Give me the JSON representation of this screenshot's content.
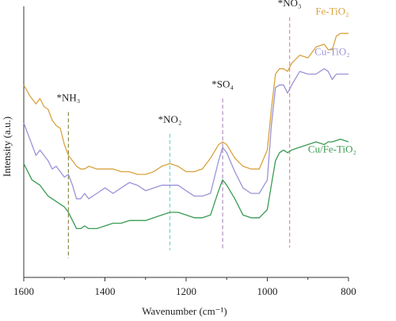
{
  "chart_data": {
    "type": "line",
    "xlabel": "Wavenumber (cm⁻¹)",
    "ylabel": "Intensity (a.u.)",
    "xlim": [
      1600,
      800
    ],
    "x_reversed": true,
    "ylim": [
      0,
      10
    ],
    "xticks": [
      1600,
      1400,
      1200,
      1000,
      800
    ],
    "grid": false,
    "colors": {
      "fe": "#d9a33f",
      "cu": "#9a93d6",
      "cufe": "#3a9a52"
    },
    "series": [
      {
        "name": "Fe-TiO₂",
        "color": "#d9a33f",
        "x": [
          1600,
          1585,
          1570,
          1560,
          1550,
          1540,
          1530,
          1520,
          1510,
          1500,
          1490,
          1480,
          1470,
          1460,
          1450,
          1440,
          1420,
          1400,
          1380,
          1360,
          1340,
          1320,
          1300,
          1280,
          1260,
          1240,
          1220,
          1200,
          1180,
          1160,
          1140,
          1120,
          1110,
          1100,
          1080,
          1060,
          1040,
          1020,
          1000,
          990,
          980,
          970,
          960,
          950,
          940,
          920,
          900,
          880,
          860,
          850,
          840,
          830,
          820,
          800
        ],
        "y": [
          7.1,
          6.7,
          6.4,
          6.6,
          6.3,
          6.2,
          5.8,
          5.6,
          5.5,
          4.9,
          4.5,
          4.3,
          4.1,
          4.0,
          4.0,
          4.1,
          4.0,
          4.0,
          4.0,
          3.9,
          3.9,
          3.8,
          3.8,
          3.9,
          4.1,
          4.2,
          4.1,
          3.9,
          3.9,
          4.0,
          4.4,
          4.9,
          5.0,
          4.9,
          4.4,
          4.1,
          4.0,
          4.0,
          4.7,
          6.2,
          7.5,
          7.7,
          7.7,
          7.6,
          7.9,
          8.2,
          8.1,
          8.5,
          8.6,
          8.4,
          8.4,
          8.9,
          9.0,
          9.0
        ]
      },
      {
        "name": "Cu-TiO₂",
        "color": "#9a93d6",
        "x": [
          1600,
          1590,
          1580,
          1570,
          1560,
          1550,
          1540,
          1530,
          1520,
          1510,
          1500,
          1490,
          1480,
          1470,
          1460,
          1450,
          1440,
          1420,
          1400,
          1380,
          1360,
          1340,
          1320,
          1300,
          1280,
          1260,
          1240,
          1220,
          1200,
          1180,
          1160,
          1140,
          1120,
          1110,
          1100,
          1080,
          1060,
          1040,
          1020,
          1000,
          990,
          980,
          970,
          960,
          950,
          940,
          920,
          900,
          880,
          860,
          850,
          840,
          830,
          820,
          800
        ],
        "y": [
          5.7,
          5.3,
          4.9,
          4.5,
          4.7,
          4.5,
          4.3,
          4.0,
          4.1,
          3.9,
          3.7,
          3.8,
          3.4,
          2.9,
          2.9,
          3.1,
          2.9,
          3.1,
          3.3,
          3.1,
          3.3,
          3.5,
          3.4,
          3.2,
          3.3,
          3.4,
          3.4,
          3.4,
          3.2,
          3.0,
          3.0,
          3.1,
          4.3,
          4.8,
          4.6,
          3.9,
          3.3,
          3.1,
          3.1,
          3.6,
          5.6,
          7.0,
          7.1,
          7.1,
          6.8,
          7.1,
          7.6,
          7.5,
          7.5,
          7.7,
          7.6,
          7.3,
          7.5,
          7.5,
          7.5
        ]
      },
      {
        "name": "Cu/Fe-TiO₂",
        "color": "#3a9a52",
        "x": [
          1600,
          1590,
          1580,
          1570,
          1560,
          1550,
          1540,
          1530,
          1520,
          1510,
          1500,
          1490,
          1480,
          1470,
          1460,
          1450,
          1440,
          1420,
          1400,
          1380,
          1360,
          1340,
          1320,
          1300,
          1280,
          1260,
          1240,
          1220,
          1200,
          1180,
          1160,
          1140,
          1120,
          1110,
          1100,
          1080,
          1060,
          1040,
          1020,
          1000,
          990,
          980,
          970,
          960,
          950,
          940,
          920,
          900,
          880,
          860,
          850,
          840,
          820,
          800
        ],
        "y": [
          4.2,
          3.9,
          3.6,
          3.5,
          3.4,
          3.2,
          3.0,
          2.9,
          2.8,
          2.7,
          2.6,
          2.4,
          2.1,
          1.8,
          1.8,
          1.9,
          1.8,
          1.8,
          1.9,
          2.0,
          2.0,
          2.1,
          2.1,
          2.1,
          2.2,
          2.3,
          2.4,
          2.4,
          2.3,
          2.2,
          2.2,
          2.3,
          3.2,
          3.6,
          3.4,
          2.9,
          2.3,
          2.2,
          2.2,
          2.5,
          3.4,
          4.3,
          4.6,
          4.7,
          4.6,
          4.7,
          4.8,
          4.9,
          5.0,
          4.9,
          5.0,
          5.0,
          5.1,
          5.0
        ]
      }
    ],
    "series_labels": [
      {
        "name": "Fe-TiO₂",
        "x": 840,
        "y": 9.7,
        "color": "#d9a33f"
      },
      {
        "name": "Cu-TiO₂",
        "x": 840,
        "y": 8.2,
        "color": "#9a93d6"
      },
      {
        "name": "Cu/Fe-TiO₂",
        "x": 840,
        "y": 4.6,
        "color": "#3a9a52"
      }
    ],
    "annotations": [
      {
        "label": "*NH₃",
        "x": 1490,
        "y_top": 6.1,
        "y_bottom": 0.7,
        "label_y": 6.5,
        "color": "#8a8a4a"
      },
      {
        "label": "*NO₂",
        "x": 1240,
        "y_top": 5.3,
        "y_bottom": 1.0,
        "label_y": 5.7,
        "color": "#7ad0d0"
      },
      {
        "label": "*SO₄",
        "x": 1110,
        "y_top": 6.6,
        "y_bottom": 1.0,
        "label_y": 7.0,
        "color": "#b090c0"
      },
      {
        "label": "*NO₃",
        "x": 945,
        "y_top": 9.6,
        "y_bottom": 1.1,
        "label_y": 10.0,
        "color": "#e48a8a"
      }
    ]
  }
}
